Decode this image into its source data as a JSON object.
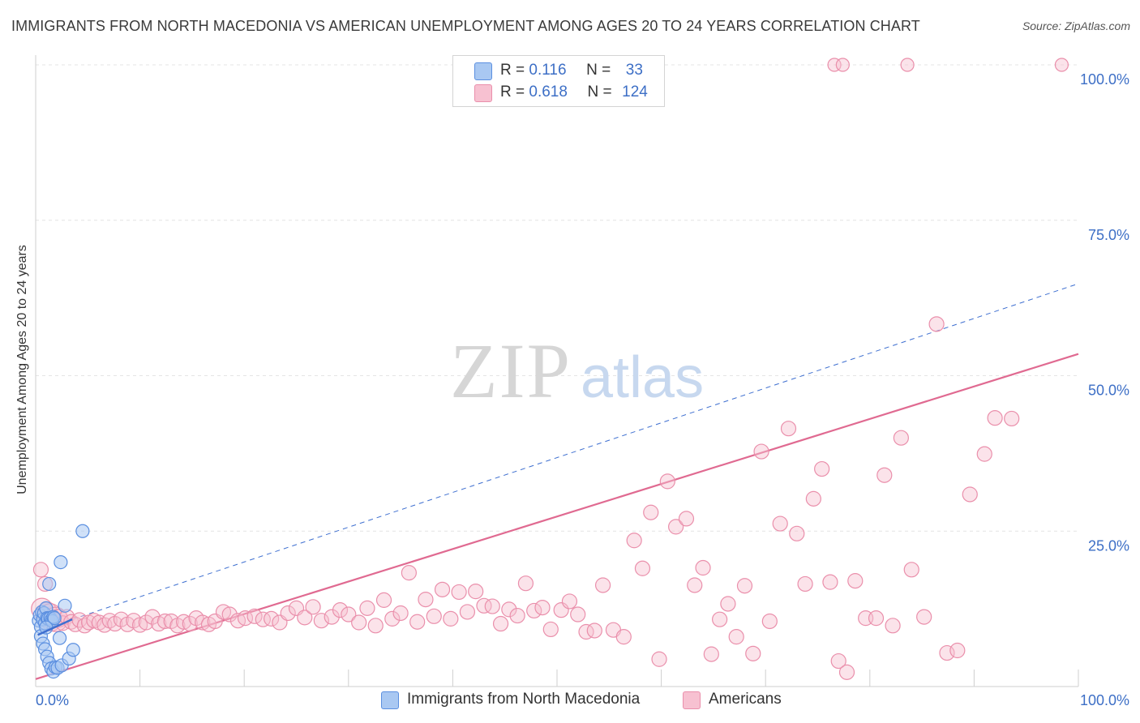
{
  "title": "IMMIGRANTS FROM NORTH MACEDONIA VS AMERICAN UNEMPLOYMENT AMONG AGES 20 TO 24 YEARS CORRELATION CHART",
  "source": "Source: ZipAtlas.com",
  "watermark": {
    "zip": "ZIP",
    "atlas": "atlas"
  },
  "legend": {
    "r_label": "R =",
    "n_label": "N =",
    "series": [
      {
        "name": "Immigrants from North Macedonia",
        "r": "0.116",
        "n": "33"
      },
      {
        "name": "Americans",
        "r": "0.618",
        "n": "124"
      }
    ]
  },
  "colors": {
    "blue_fill": "#a9c8f2",
    "blue_stroke": "#5b8fe0",
    "blue_line": "#3e6fd0",
    "pink_fill": "#f7c1d1",
    "pink_stroke": "#ea8fab",
    "pink_line": "#e06a91",
    "grid": "#e4e4e4",
    "axis_label": "#3d6fc6"
  },
  "chart_data": {
    "type": "scatter",
    "title": "IMMIGRANTS FROM NORTH MACEDONIA VS AMERICAN UNEMPLOYMENT AMONG AGES 20 TO 24 YEARS CORRELATION CHART",
    "xlabel": "",
    "ylabel": "Unemployment Among Ages 20 to 24 years",
    "xlim": [
      0,
      100
    ],
    "ylim": [
      0,
      100
    ],
    "x_tick_labels": [
      "0.0%",
      "100.0%"
    ],
    "y_ticks": [
      {
        "value": 25,
        "label": "25.0%"
      },
      {
        "value": 50,
        "label": "50.0%"
      },
      {
        "value": 75,
        "label": "75.0%"
      },
      {
        "value": 100,
        "label": "100.0%"
      }
    ],
    "series": [
      {
        "name": "Immigrants from North Macedonia",
        "color": "blue",
        "trend": {
          "style": "solid",
          "x": [
            0.2,
            3.5
          ],
          "y": [
            8.3,
            10.8
          ]
        },
        "trend_extension": {
          "style": "dashed",
          "x": [
            3.5,
            100
          ],
          "y": [
            10.8,
            64.8
          ]
        },
        "points": [
          [
            0.3,
            10.6
          ],
          [
            0.4,
            11.5
          ],
          [
            0.5,
            9.6
          ],
          [
            0.6,
            12.0
          ],
          [
            0.7,
            10.8
          ],
          [
            0.8,
            11.8
          ],
          [
            0.9,
            10.2
          ],
          [
            1.0,
            12.6
          ],
          [
            1.1,
            11.0
          ],
          [
            1.2,
            10.9
          ],
          [
            1.3,
            16.5
          ],
          [
            1.4,
            11.0
          ],
          [
            1.5,
            10.7
          ],
          [
            1.6,
            10.5
          ],
          [
            1.7,
            11.2
          ],
          [
            1.8,
            11.0
          ],
          [
            0.5,
            8.1
          ],
          [
            0.7,
            6.9
          ],
          [
            0.9,
            6.0
          ],
          [
            1.1,
            4.8
          ],
          [
            1.3,
            3.8
          ],
          [
            1.5,
            2.9
          ],
          [
            1.7,
            2.4
          ],
          [
            1.9,
            3.1
          ],
          [
            2.1,
            3.0
          ],
          [
            2.3,
            7.8
          ],
          [
            2.5,
            3.4
          ],
          [
            2.8,
            13.0
          ],
          [
            3.2,
            4.5
          ],
          [
            3.6,
            5.9
          ],
          [
            2.4,
            20.0
          ],
          [
            4.5,
            25.0
          ],
          [
            1.0,
            9.5
          ]
        ]
      },
      {
        "name": "Americans",
        "color": "pink",
        "trend": {
          "style": "solid",
          "x": [
            0,
            100
          ],
          "y": [
            1.2,
            53.5
          ]
        },
        "points": [
          [
            0.5,
            18.8
          ],
          [
            0.6,
            12.5
          ],
          [
            0.9,
            16.5
          ],
          [
            1.1,
            12.0
          ],
          [
            1.4,
            11.5
          ],
          [
            1.5,
            10.5
          ],
          [
            1.9,
            10.8
          ],
          [
            2.2,
            11.0
          ],
          [
            2.6,
            10.2
          ],
          [
            3.0,
            11.2
          ],
          [
            3.4,
            10.4
          ],
          [
            3.8,
            10.0
          ],
          [
            4.2,
            10.7
          ],
          [
            4.7,
            9.8
          ],
          [
            5.1,
            10.3
          ],
          [
            5.6,
            10.6
          ],
          [
            6.1,
            10.3
          ],
          [
            6.6,
            9.9
          ],
          [
            7.1,
            10.6
          ],
          [
            7.6,
            10.1
          ],
          [
            8.2,
            10.8
          ],
          [
            8.8,
            10.0
          ],
          [
            9.4,
            10.6
          ],
          [
            10.0,
            9.9
          ],
          [
            10.6,
            10.3
          ],
          [
            11.2,
            11.2
          ],
          [
            11.8,
            10.1
          ],
          [
            12.4,
            10.5
          ],
          [
            13.0,
            10.5
          ],
          [
            13.6,
            9.8
          ],
          [
            14.2,
            10.4
          ],
          [
            14.8,
            10.1
          ],
          [
            15.4,
            11.0
          ],
          [
            16.0,
            10.3
          ],
          [
            16.6,
            10.0
          ],
          [
            17.2,
            10.5
          ],
          [
            18.0,
            12.0
          ],
          [
            18.6,
            11.6
          ],
          [
            19.4,
            10.6
          ],
          [
            20.1,
            11.0
          ],
          [
            21.0,
            11.3
          ],
          [
            21.8,
            10.8
          ],
          [
            22.6,
            10.9
          ],
          [
            23.4,
            10.3
          ],
          [
            24.2,
            11.8
          ],
          [
            25.0,
            12.6
          ],
          [
            25.8,
            11.1
          ],
          [
            26.6,
            12.8
          ],
          [
            27.4,
            10.6
          ],
          [
            28.4,
            11.2
          ],
          [
            29.2,
            12.3
          ],
          [
            30.0,
            11.6
          ],
          [
            31.0,
            10.3
          ],
          [
            31.8,
            12.6
          ],
          [
            32.6,
            9.8
          ],
          [
            33.4,
            13.9
          ],
          [
            34.2,
            10.9
          ],
          [
            35.0,
            11.8
          ],
          [
            35.8,
            18.3
          ],
          [
            36.6,
            10.4
          ],
          [
            37.4,
            14.0
          ],
          [
            38.2,
            11.3
          ],
          [
            39.0,
            15.6
          ],
          [
            39.8,
            10.9
          ],
          [
            40.6,
            15.2
          ],
          [
            41.4,
            12.0
          ],
          [
            42.2,
            15.3
          ],
          [
            43.0,
            13.0
          ],
          [
            43.8,
            12.9
          ],
          [
            44.6,
            10.1
          ],
          [
            45.4,
            12.4
          ],
          [
            46.2,
            11.4
          ],
          [
            47.0,
            16.6
          ],
          [
            47.8,
            12.2
          ],
          [
            48.6,
            12.7
          ],
          [
            49.4,
            9.2
          ],
          [
            50.4,
            12.3
          ],
          [
            51.2,
            13.7
          ],
          [
            52.0,
            11.6
          ],
          [
            52.8,
            8.8
          ],
          [
            53.6,
            9.0
          ],
          [
            54.4,
            16.3
          ],
          [
            55.4,
            9.1
          ],
          [
            56.4,
            8.0
          ],
          [
            57.4,
            23.5
          ],
          [
            58.2,
            19.0
          ],
          [
            59.0,
            28.0
          ],
          [
            59.8,
            4.4
          ],
          [
            60.6,
            33.0
          ],
          [
            61.4,
            25.7
          ],
          [
            62.4,
            27.0
          ],
          [
            63.2,
            16.3
          ],
          [
            64.0,
            19.1
          ],
          [
            64.8,
            5.2
          ],
          [
            65.6,
            10.8
          ],
          [
            66.4,
            13.3
          ],
          [
            67.2,
            8.0
          ],
          [
            68.0,
            16.2
          ],
          [
            68.8,
            5.3
          ],
          [
            69.6,
            37.8
          ],
          [
            70.4,
            10.5
          ],
          [
            71.4,
            26.2
          ],
          [
            72.2,
            41.5
          ],
          [
            73.0,
            24.6
          ],
          [
            73.8,
            16.5
          ],
          [
            74.6,
            30.2
          ],
          [
            75.4,
            35.0
          ],
          [
            76.2,
            16.8
          ],
          [
            77.0,
            4.1
          ],
          [
            77.8,
            2.3
          ],
          [
            78.6,
            17.0
          ],
          [
            79.6,
            11.0
          ],
          [
            80.6,
            11.0
          ],
          [
            81.4,
            34.0
          ],
          [
            82.2,
            9.8
          ],
          [
            83.0,
            40.0
          ],
          [
            84.0,
            18.8
          ],
          [
            85.2,
            11.2
          ],
          [
            86.4,
            58.3
          ],
          [
            87.4,
            5.4
          ],
          [
            88.4,
            5.8
          ],
          [
            89.6,
            30.9
          ],
          [
            91.0,
            37.4
          ],
          [
            92.0,
            43.2
          ],
          [
            93.6,
            43.1
          ]
        ],
        "points_top": [
          [
            76.6,
            100
          ],
          [
            77.4,
            100
          ],
          [
            83.6,
            100
          ],
          [
            98.4,
            100
          ]
        ]
      }
    ]
  }
}
